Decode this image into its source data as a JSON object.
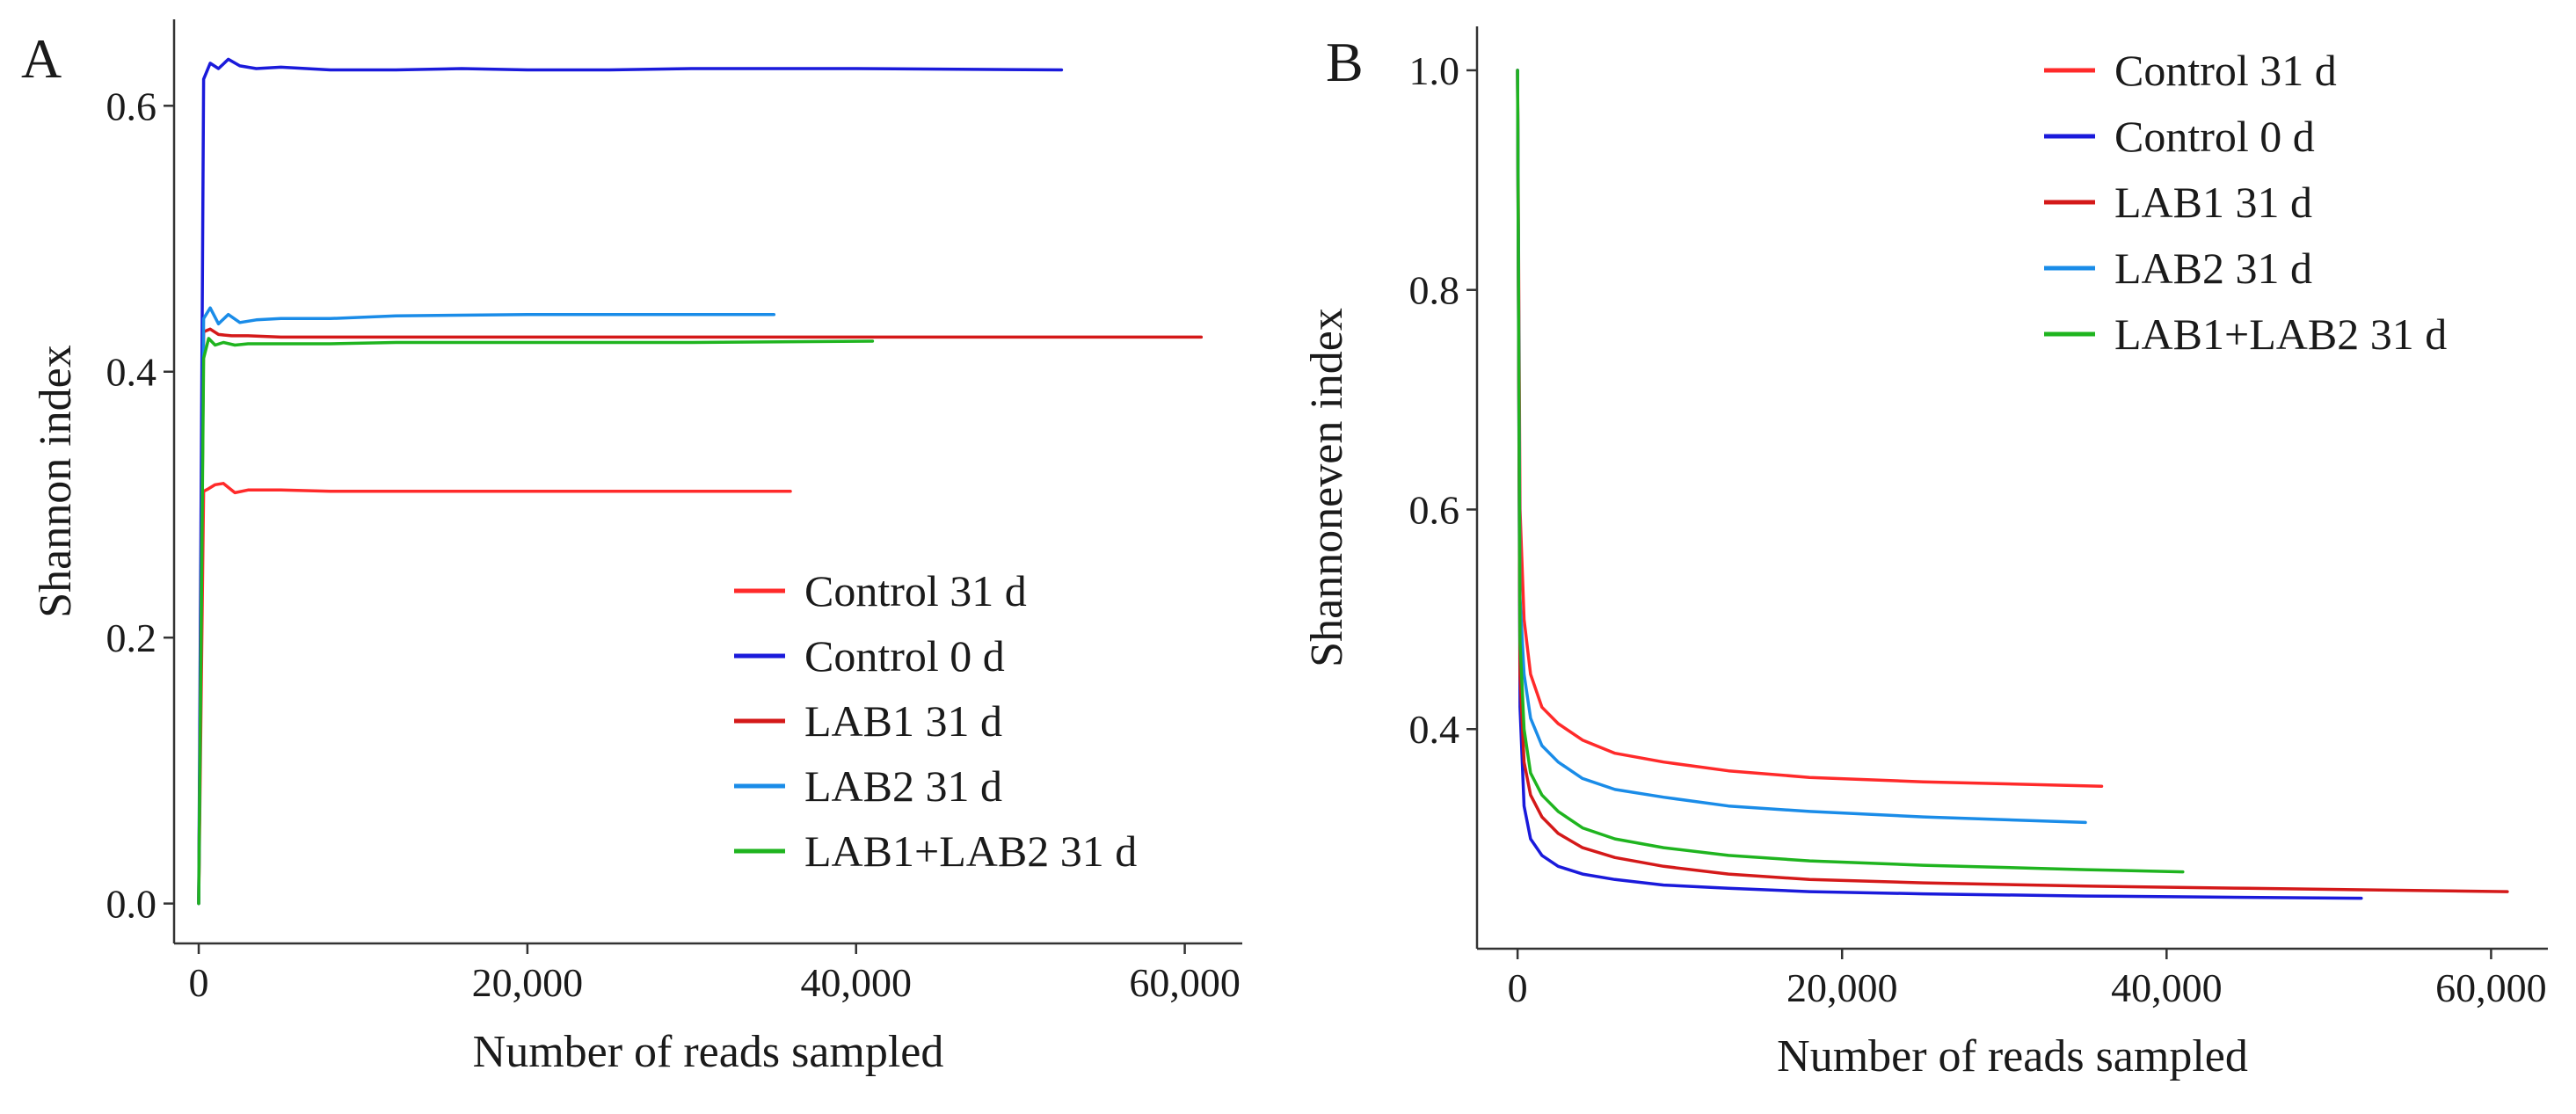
{
  "chart_data": [
    {
      "type": "line",
      "panel": "A",
      "xlabel": "Number of reads sampled",
      "ylabel": "Shannon index",
      "xlim": [
        -1500,
        63500
      ],
      "ylim": [
        -0.03,
        0.665
      ],
      "xticks": [
        0,
        20000,
        40000,
        60000
      ],
      "xtick_labels": [
        "0",
        "20,000",
        "40,000",
        "60,000"
      ],
      "yticks": [
        0.0,
        0.2,
        0.4,
        0.6
      ],
      "ytick_labels": [
        "0.0",
        "0.2",
        "0.4",
        "0.6"
      ],
      "grid": false,
      "legend_position": "bottom-right",
      "series": [
        {
          "name": "Control 31 d",
          "color": "#ff2a2a",
          "x": [
            0,
            300,
            600,
            1000,
            1500,
            2200,
            3000,
            5000,
            8000,
            12000,
            20000,
            30000,
            36000
          ],
          "y": [
            0.0,
            0.31,
            0.312,
            0.315,
            0.316,
            0.309,
            0.311,
            0.311,
            0.31,
            0.31,
            0.31,
            0.31,
            0.31
          ]
        },
        {
          "name": "Control 0 d",
          "color": "#1a1adb",
          "x": [
            0,
            300,
            700,
            1200,
            1800,
            2500,
            3500,
            5000,
            8000,
            12000,
            16000,
            20000,
            25000,
            30000,
            40000,
            52500
          ],
          "y": [
            0.0,
            0.62,
            0.632,
            0.628,
            0.635,
            0.63,
            0.628,
            0.629,
            0.627,
            0.627,
            0.628,
            0.627,
            0.627,
            0.628,
            0.628,
            0.627
          ]
        },
        {
          "name": "LAB1 31 d",
          "color": "#d41919",
          "x": [
            0,
            300,
            700,
            1200,
            2000,
            3000,
            5000,
            10000,
            20000,
            30000,
            40000,
            50000,
            61000
          ],
          "y": [
            0.0,
            0.43,
            0.432,
            0.428,
            0.427,
            0.427,
            0.426,
            0.426,
            0.426,
            0.426,
            0.426,
            0.426,
            0.426
          ]
        },
        {
          "name": "LAB2 31 d",
          "color": "#1a8ce8",
          "x": [
            0,
            300,
            700,
            1200,
            1800,
            2500,
            3500,
            5000,
            8000,
            12000,
            20000,
            28000,
            35000
          ],
          "y": [
            0.0,
            0.44,
            0.448,
            0.436,
            0.443,
            0.437,
            0.439,
            0.44,
            0.44,
            0.442,
            0.443,
            0.443,
            0.443
          ]
        },
        {
          "name": "LAB1+LAB2 31 d",
          "color": "#1fb41f",
          "x": [
            0,
            300,
            600,
            1000,
            1500,
            2200,
            3000,
            5000,
            8000,
            12000,
            20000,
            30000,
            41000
          ],
          "y": [
            0.0,
            0.41,
            0.425,
            0.42,
            0.422,
            0.42,
            0.421,
            0.421,
            0.421,
            0.422,
            0.422,
            0.422,
            0.423
          ]
        }
      ]
    },
    {
      "type": "line",
      "panel": "B",
      "xlabel": "Number of reads sampled",
      "ylabel": "Shannoneven index",
      "xlim": [
        -2500,
        63500
      ],
      "ylim": [
        0.2,
        1.04
      ],
      "xticks": [
        0,
        20000,
        40000,
        60000
      ],
      "xtick_labels": [
        "0",
        "20,000",
        "40,000",
        "60,000"
      ],
      "yticks": [
        0.4,
        0.6,
        0.8,
        1.0
      ],
      "ytick_labels": [
        "0.4",
        "0.6",
        "0.8",
        "1.0"
      ],
      "grid": false,
      "legend_position": "top-right",
      "series": [
        {
          "name": "Control 31 d",
          "color": "#ff2a2a",
          "x": [
            0,
            150,
            400,
            800,
            1500,
            2500,
            4000,
            6000,
            9000,
            13000,
            18000,
            25000,
            36000
          ],
          "y": [
            1.0,
            0.6,
            0.5,
            0.45,
            0.42,
            0.405,
            0.39,
            0.378,
            0.37,
            0.362,
            0.356,
            0.352,
            0.348
          ]
        },
        {
          "name": "Control 0 d",
          "color": "#1a1adb",
          "x": [
            0,
            150,
            400,
            800,
            1500,
            2500,
            4000,
            6000,
            9000,
            13000,
            18000,
            25000,
            35000,
            52000
          ],
          "y": [
            1.0,
            0.42,
            0.33,
            0.3,
            0.285,
            0.275,
            0.268,
            0.263,
            0.258,
            0.255,
            0.252,
            0.25,
            0.248,
            0.246
          ]
        },
        {
          "name": "LAB1 31 d",
          "color": "#d41919",
          "x": [
            0,
            150,
            400,
            800,
            1500,
            2500,
            4000,
            6000,
            9000,
            13000,
            18000,
            25000,
            35000,
            45000,
            61000
          ],
          "y": [
            1.0,
            0.45,
            0.37,
            0.34,
            0.32,
            0.305,
            0.292,
            0.283,
            0.275,
            0.268,
            0.263,
            0.26,
            0.257,
            0.255,
            0.252
          ]
        },
        {
          "name": "LAB2 31 d",
          "color": "#1a8ce8",
          "x": [
            0,
            150,
            400,
            800,
            1500,
            2500,
            4000,
            6000,
            9000,
            13000,
            18000,
            25000,
            35000
          ],
          "y": [
            1.0,
            0.52,
            0.45,
            0.41,
            0.385,
            0.37,
            0.355,
            0.345,
            0.338,
            0.33,
            0.325,
            0.32,
            0.315
          ]
        },
        {
          "name": "LAB1+LAB2 31 d",
          "color": "#1fb41f",
          "x": [
            0,
            150,
            400,
            800,
            1500,
            2500,
            4000,
            6000,
            9000,
            13000,
            18000,
            25000,
            35000,
            41000
          ],
          "y": [
            1.0,
            0.48,
            0.4,
            0.36,
            0.34,
            0.325,
            0.31,
            0.3,
            0.292,
            0.285,
            0.28,
            0.276,
            0.272,
            0.27
          ]
        }
      ]
    }
  ]
}
